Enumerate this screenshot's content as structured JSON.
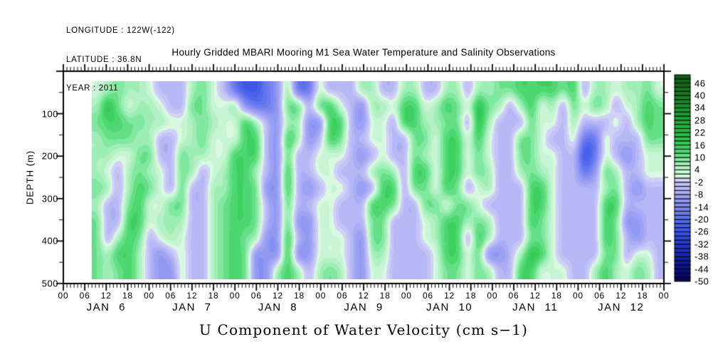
{
  "header": {
    "line1": "LONGITUDE : 122W(-122)",
    "line2": "LATITUDE : 36.8N",
    "line3": "YEAR : 2011"
  },
  "title": "Hourly Gridded MBARI Mooring M1 Sea Water Temperature and Salinity Observations",
  "footer_title": "U Component of Water Velocity (cm s−1)",
  "y_axis": {
    "title": "DEPTH (m)",
    "tick_labels": [
      "100",
      "200",
      "300",
      "400",
      "500"
    ],
    "tick_depths": [
      100,
      200,
      300,
      400,
      500
    ],
    "minor_step_m": 50,
    "range_m": [
      0,
      500
    ]
  },
  "x_axis": {
    "hour_tick_labels": [
      "00",
      "06",
      "12",
      "18",
      "00",
      "06",
      "12",
      "18",
      "00",
      "06",
      "12",
      "18",
      "00",
      "06",
      "12",
      "18",
      "00",
      "06",
      "12",
      "18",
      "00",
      "06",
      "12",
      "18",
      "00",
      "06",
      "12",
      "18",
      "00"
    ],
    "hour_step": 6,
    "minor_step_hours": 1,
    "range_hours": [
      0,
      168
    ],
    "day_labels": [
      "JAN 6",
      "JAN 7",
      "JAN 8",
      "JAN 9",
      "JAN 10",
      "JAN 11",
      "JAN 12"
    ]
  },
  "colorbar": {
    "tick_labels": [
      "46",
      "40",
      "34",
      "28",
      "22",
      "16",
      "10",
      "4",
      "-2",
      "-8",
      "-14",
      "-20",
      "-26",
      "-32",
      "-38",
      "-44",
      "-50"
    ],
    "min": -50,
    "max": 50,
    "cell_step": 2,
    "blue_stops": [
      [
        -50,
        [
          4,
          8,
          76
        ]
      ],
      [
        -44,
        [
          11,
          16,
          130
        ]
      ],
      [
        -38,
        [
          20,
          34,
          170
        ]
      ],
      [
        -32,
        [
          34,
          56,
          205
        ]
      ],
      [
        -26,
        [
          56,
          82,
          230
        ]
      ],
      [
        -20,
        [
          88,
          110,
          238
        ]
      ],
      [
        -14,
        [
          127,
          137,
          240
        ]
      ],
      [
        -8,
        [
          162,
          166,
          243
        ]
      ],
      [
        -2,
        [
          201,
          201,
          246
        ]
      ],
      [
        0,
        [
          217,
          217,
          249
        ]
      ]
    ],
    "green_stops": [
      [
        0,
        [
          226,
          250,
          230
        ]
      ],
      [
        4,
        [
          190,
          243,
          204
        ]
      ],
      [
        8,
        [
          144,
          236,
          172
        ]
      ],
      [
        12,
        [
          85,
          218,
          120
        ]
      ],
      [
        16,
        [
          53,
          204,
          88
        ]
      ],
      [
        20,
        [
          43,
          191,
          74
        ]
      ],
      [
        26,
        [
          36,
          173,
          60
        ]
      ],
      [
        32,
        [
          29,
          153,
          48
        ]
      ],
      [
        38,
        [
          23,
          133,
          38
        ]
      ],
      [
        44,
        [
          16,
          113,
          28
        ]
      ],
      [
        50,
        [
          10,
          90,
          18
        ]
      ]
    ]
  },
  "chart_data": {
    "type": "heatmap",
    "title": "Hourly Gridded MBARI Mooring M1 Sea Water Temperature and Salinity Observations",
    "xlabel": "U Component of Water Velocity (cm s−1)",
    "ylabel": "DEPTH (m)",
    "units": "cm s-1",
    "x_range_hours": [
      0,
      168
    ],
    "data_start_hour": 8,
    "data_end_hour": 168,
    "depth_range_m": [
      0,
      500
    ],
    "data_top_depth_m": 24,
    "data_bottom_depth_m": 490,
    "grid_cols": 54,
    "grid_rows": 12,
    "values": [
      [
        2,
        6,
        10,
        6,
        6,
        2,
        -5,
        -5,
        -5,
        6,
        10,
        2,
        -5,
        -18,
        -25,
        -25,
        -18,
        -11,
        6,
        -18,
        -18,
        2,
        -5,
        -5,
        -5,
        6,
        6,
        -5,
        -5,
        6,
        6,
        -5,
        -5,
        6,
        6,
        -5,
        6,
        6,
        10,
        10,
        14,
        14,
        14,
        14,
        10,
        14,
        -5,
        6,
        6,
        2,
        6,
        6,
        10,
        2
      ],
      [
        6,
        18,
        10,
        2,
        6,
        6,
        2,
        -5,
        -5,
        10,
        10,
        2,
        2,
        6,
        -11,
        -18,
        -18,
        -11,
        10,
        10,
        -5,
        10,
        14,
        2,
        -5,
        -11,
        6,
        6,
        2,
        14,
        14,
        2,
        6,
        14,
        10,
        2,
        18,
        10,
        6,
        -5,
        6,
        14,
        2,
        6,
        -5,
        10,
        2,
        10,
        6,
        -5,
        2,
        6,
        14,
        10
      ],
      [
        10,
        14,
        14,
        10,
        10,
        6,
        6,
        2,
        2,
        6,
        10,
        6,
        2,
        2,
        14,
        6,
        -5,
        -11,
        6,
        6,
        -11,
        -11,
        14,
        14,
        -5,
        -11,
        2,
        2,
        -5,
        14,
        14,
        6,
        6,
        10,
        10,
        -5,
        18,
        6,
        -5,
        -5,
        -5,
        10,
        2,
        2,
        -5,
        6,
        -5,
        -5,
        -5,
        2,
        -5,
        6,
        14,
        10
      ],
      [
        6,
        10,
        10,
        10,
        6,
        6,
        -5,
        -5,
        2,
        6,
        10,
        2,
        2,
        2,
        14,
        14,
        -5,
        -11,
        14,
        6,
        -11,
        -5,
        14,
        10,
        -5,
        -5,
        2,
        2,
        -5,
        -5,
        10,
        10,
        2,
        14,
        14,
        2,
        14,
        2,
        -5,
        -5,
        10,
        10,
        2,
        -5,
        -5,
        2,
        -18,
        -18,
        2,
        -5,
        -5,
        -5,
        10,
        10
      ],
      [
        6,
        6,
        2,
        2,
        10,
        10,
        -5,
        -5,
        10,
        6,
        6,
        2,
        2,
        14,
        14,
        14,
        -5,
        -11,
        10,
        -5,
        -5,
        2,
        2,
        2,
        -5,
        -11,
        -5,
        2,
        -5,
        -5,
        10,
        6,
        2,
        14,
        14,
        2,
        10,
        2,
        -5,
        -5,
        10,
        10,
        2,
        2,
        -5,
        -5,
        -25,
        -18,
        2,
        -5,
        -11,
        -5,
        2,
        2
      ],
      [
        6,
        2,
        -5,
        6,
        10,
        6,
        2,
        -5,
        10,
        6,
        -5,
        2,
        6,
        14,
        14,
        6,
        -5,
        -11,
        14,
        -5,
        -5,
        2,
        2,
        -5,
        -5,
        -5,
        6,
        10,
        6,
        -5,
        14,
        14,
        2,
        14,
        14,
        2,
        10,
        6,
        -5,
        -5,
        6,
        10,
        6,
        2,
        -5,
        -5,
        -18,
        -11,
        10,
        6,
        -5,
        -5,
        2,
        2
      ],
      [
        10,
        6,
        -5,
        6,
        14,
        10,
        2,
        -5,
        10,
        -5,
        -5,
        6,
        6,
        14,
        14,
        10,
        -11,
        -11,
        14,
        -5,
        -11,
        -5,
        2,
        2,
        -5,
        -11,
        -5,
        14,
        14,
        -5,
        10,
        10,
        2,
        14,
        10,
        -5,
        2,
        6,
        -5,
        -5,
        -5,
        14,
        14,
        2,
        -5,
        -5,
        -5,
        -5,
        6,
        10,
        -5,
        -11,
        -5,
        -5
      ],
      [
        6,
        -5,
        -5,
        10,
        14,
        2,
        2,
        10,
        10,
        -5,
        -5,
        6,
        10,
        14,
        14,
        10,
        -5,
        -11,
        10,
        -5,
        -5,
        2,
        2,
        -5,
        -5,
        -5,
        14,
        14,
        10,
        -5,
        -5,
        10,
        10,
        2,
        10,
        10,
        2,
        -5,
        -5,
        -5,
        -5,
        14,
        14,
        2,
        -5,
        -5,
        -5,
        -5,
        14,
        14,
        -5,
        -5,
        -5,
        -5
      ],
      [
        10,
        -5,
        -5,
        14,
        14,
        2,
        6,
        6,
        6,
        -5,
        -5,
        6,
        10,
        14,
        14,
        10,
        -5,
        -11,
        10,
        -11,
        -11,
        2,
        2,
        -5,
        -5,
        -5,
        10,
        10,
        -5,
        -5,
        -5,
        2,
        6,
        14,
        14,
        6,
        10,
        6,
        -5,
        -5,
        -5,
        14,
        10,
        2,
        -5,
        -5,
        -5,
        -5,
        14,
        10,
        -11,
        -11,
        -5,
        -5
      ],
      [
        10,
        -5,
        6,
        14,
        10,
        -5,
        2,
        6,
        2,
        -5,
        -5,
        6,
        10,
        14,
        10,
        6,
        -11,
        -11,
        14,
        -5,
        -11,
        2,
        2,
        2,
        -5,
        -11,
        10,
        10,
        -5,
        -5,
        -5,
        2,
        6,
        14,
        14,
        -5,
        14,
        6,
        -5,
        -5,
        -5,
        10,
        10,
        2,
        -5,
        -5,
        -5,
        -5,
        14,
        10,
        -5,
        -11,
        -5,
        -5
      ],
      [
        10,
        6,
        14,
        14,
        6,
        -5,
        -11,
        -5,
        2,
        -5,
        -5,
        6,
        10,
        14,
        10,
        -11,
        -11,
        -11,
        14,
        -11,
        -11,
        2,
        2,
        2,
        -5,
        -11,
        6,
        6,
        -5,
        -5,
        -5,
        -5,
        2,
        14,
        14,
        2,
        10,
        -11,
        -11,
        -5,
        6,
        18,
        14,
        2,
        -5,
        -5,
        -5,
        -5,
        10,
        10,
        -5,
        2,
        2,
        -5
      ],
      [
        10,
        6,
        10,
        14,
        6,
        -5,
        -11,
        -11,
        2,
        -5,
        -5,
        6,
        10,
        14,
        10,
        -11,
        -11,
        6,
        14,
        6,
        -5,
        6,
        10,
        6,
        -5,
        -11,
        2,
        2,
        -5,
        -5,
        -5,
        -5,
        2,
        10,
        10,
        2,
        10,
        6,
        -5,
        -5,
        14,
        14,
        2,
        2,
        2,
        -5,
        -5,
        6,
        14,
        6,
        2,
        10,
        6,
        -5
      ]
    ]
  }
}
